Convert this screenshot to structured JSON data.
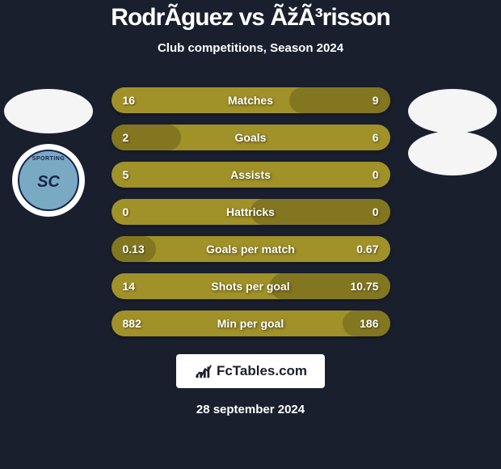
{
  "title": "RodrÃguez vs ÃžÃ³risson",
  "subtitle": "Club competitions, Season 2024",
  "date": "28 september 2024",
  "fctables": "FcTables.com",
  "colors": {
    "background": "#1a1f2e",
    "bar_base": "#a09128",
    "bar_shade": "rgba(0,0,0,0.18)",
    "text": "#ffffff",
    "avatar_bg": "#f5f5f5"
  },
  "bars": [
    {
      "label": "Matches",
      "left": "16",
      "right": "9",
      "fill_side": "right",
      "fill_width": 36
    },
    {
      "label": "Goals",
      "left": "2",
      "right": "6",
      "fill_side": "left",
      "fill_width": 25
    },
    {
      "label": "Assists",
      "left": "5",
      "right": "0",
      "fill_side": "right",
      "fill_width": 0
    },
    {
      "label": "Hattricks",
      "left": "0",
      "right": "0",
      "fill_side": "right",
      "fill_width": 50
    },
    {
      "label": "Goals per match",
      "left": "0.13",
      "right": "0.67",
      "fill_side": "left",
      "fill_width": 16
    },
    {
      "label": "Shots per goal",
      "left": "14",
      "right": "10.75",
      "fill_side": "right",
      "fill_width": 43
    },
    {
      "label": "Min per goal",
      "left": "882",
      "right": "186",
      "fill_side": "right",
      "fill_width": 17
    }
  ]
}
